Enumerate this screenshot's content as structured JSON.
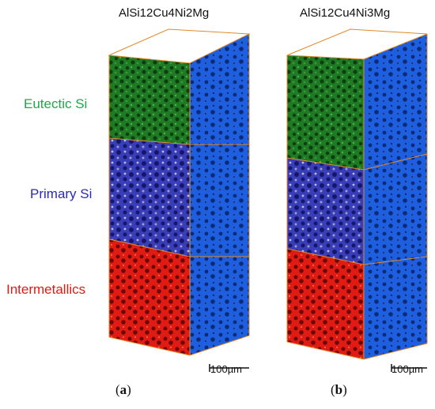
{
  "panels": [
    {
      "title": "AlSi12Cu4Ni2Mg",
      "label_open": "(",
      "label_letter": "a",
      "label_close": ")"
    },
    {
      "title": "AlSi12Cu4Ni3Mg",
      "label_open": "(",
      "label_letter": "b",
      "label_close": ")"
    }
  ],
  "legend": {
    "eutectic": "Eutectic Si",
    "primary": "Primary Si",
    "intermetallics": "Intermetallics"
  },
  "scale_bar": "100µm",
  "colors": {
    "eutectic": "#1f7a24",
    "eutectic_text": "#1ea84a",
    "primary": "#3d3fc0",
    "primary_text": "#2b2bb0",
    "intermetallics": "#e01b14",
    "intermetallics_text": "#e01b14",
    "matrix_side": "#1e5fe0",
    "box_edge": "#e08a2a"
  }
}
